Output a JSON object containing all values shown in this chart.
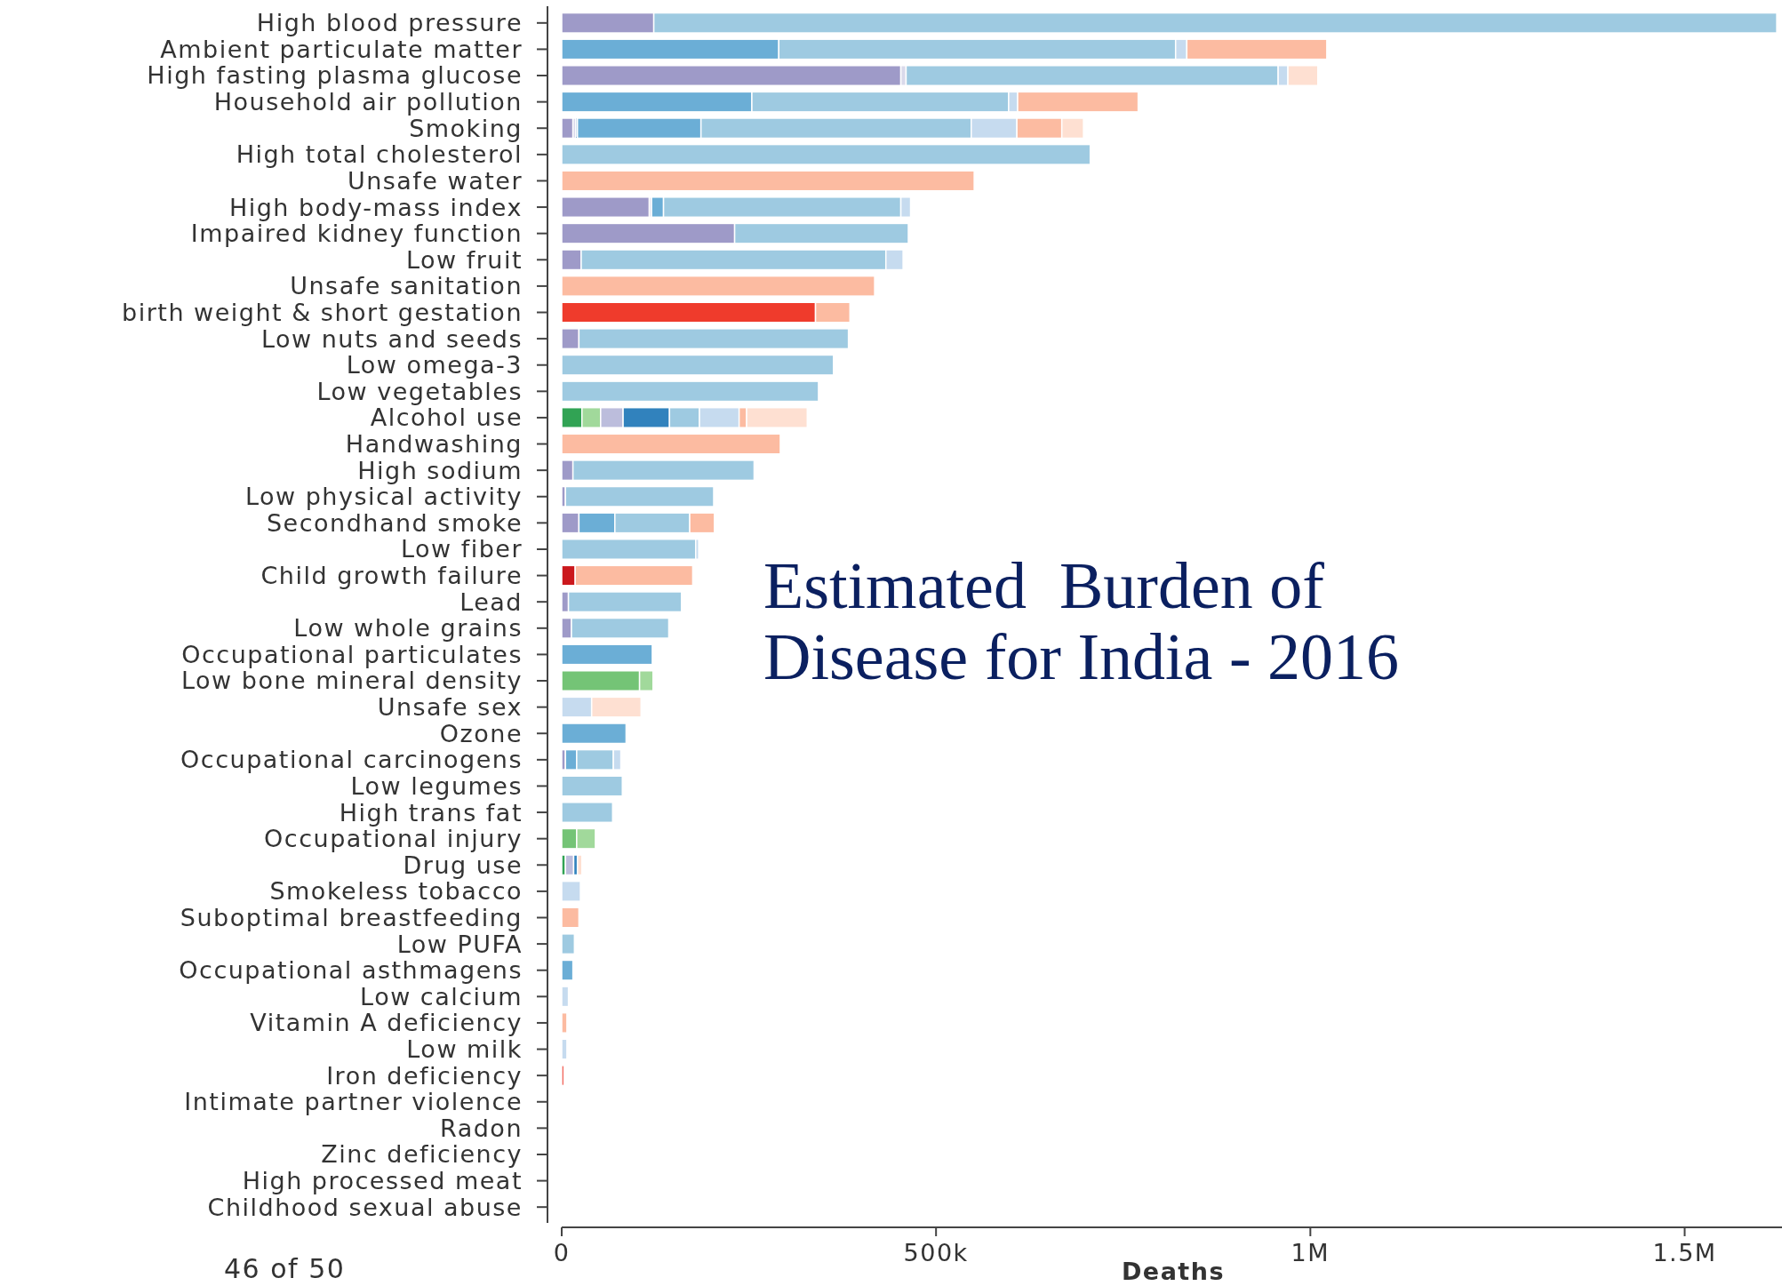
{
  "chart_data": {
    "type": "bar",
    "orientation": "horizontal",
    "stacked": true,
    "title": "Estimated  Burden of Disease for India - 2016",
    "xlabel": "Deaths",
    "annotations": [
      "46 of 50"
    ],
    "categories": [
      "High blood pressure",
      "Ambient particulate matter",
      "High fasting plasma glucose",
      "Household air pollution",
      "Smoking",
      "High total cholesterol",
      "Unsafe water",
      "High body-mass index",
      "Impaired kidney function",
      "Low fruit",
      "Unsafe sanitation",
      "birth weight & short gestation",
      "Low nuts and seeds",
      "Low omega-3",
      "Low vegetables",
      "Alcohol use",
      "Handwashing",
      "High sodium",
      "Low physical activity",
      "Secondhand smoke",
      "Low fiber",
      "Child growth failure",
      "Lead",
      "Low whole grains",
      "Occupational particulates",
      "Low bone mineral density",
      "Unsafe sex",
      "Ozone",
      "Occupational carcinogens",
      "Low legumes",
      "High trans fat",
      "Occupational injury",
      "Drug use",
      "Smokeless tobacco",
      "Suboptimal breastfeeding",
      "Low PUFA",
      "Occupational asthmagens",
      "Low calcium",
      "Vitamin A deficiency",
      "Low milk",
      "Iron deficiency",
      "Intimate partner violence",
      "Radon",
      "Zinc deficiency",
      "High processed meat",
      "Childhood sexual abuse"
    ],
    "xlim": [
      0,
      1630000
    ],
    "xticks": [
      0,
      {
        "value": 500000,
        "label": "500k"
      },
      {
        "value": 1000000,
        "label": "1M"
      },
      {
        "value": 1500000,
        "label": "1.5M"
      }
    ],
    "series": [
      {
        "color": "#31a354",
        "values": [
          null,
          null,
          null,
          null,
          null,
          null,
          null,
          null,
          null,
          null,
          null,
          null,
          null,
          null,
          null,
          27000,
          null,
          null,
          null,
          null,
          null,
          null,
          null,
          null,
          null,
          null,
          null,
          null,
          null,
          null,
          null,
          null,
          5000,
          null,
          null,
          null,
          null,
          null,
          null,
          null,
          null,
          null,
          null,
          null,
          null,
          null
        ]
      },
      {
        "color": "#74c476",
        "values": [
          null,
          null,
          null,
          null,
          null,
          null,
          null,
          null,
          null,
          null,
          null,
          null,
          null,
          null,
          null,
          null,
          null,
          null,
          null,
          null,
          null,
          null,
          null,
          null,
          null,
          104000,
          null,
          null,
          null,
          null,
          null,
          20000,
          null,
          null,
          null,
          null,
          null,
          null,
          null,
          null,
          null,
          null,
          null,
          null,
          null,
          null
        ]
      },
      {
        "color": "#a1d99b",
        "values": [
          null,
          null,
          null,
          null,
          null,
          null,
          null,
          null,
          null,
          null,
          null,
          null,
          null,
          null,
          null,
          25000,
          null,
          null,
          null,
          null,
          null,
          null,
          null,
          null,
          null,
          18000,
          null,
          null,
          null,
          null,
          null,
          25000,
          null,
          null,
          null,
          null,
          null,
          null,
          null,
          null,
          null,
          null,
          null,
          null,
          null,
          null
        ]
      },
      {
        "color": "#9e9ac8",
        "values": [
          123000,
          null,
          453000,
          null,
          15000,
          null,
          null,
          117000,
          231000,
          26000,
          null,
          null,
          23000,
          null,
          null,
          null,
          null,
          15000,
          5000,
          23000,
          null,
          null,
          9000,
          13000,
          null,
          null,
          null,
          null,
          5000,
          null,
          null,
          null,
          null,
          null,
          null,
          null,
          null,
          null,
          null,
          null,
          null,
          null,
          null,
          null,
          null,
          null
        ]
      },
      {
        "color": "#bcbddc",
        "values": [
          null,
          null,
          null,
          null,
          null,
          null,
          null,
          null,
          null,
          null,
          null,
          null,
          null,
          null,
          null,
          30000,
          null,
          null,
          null,
          null,
          null,
          null,
          null,
          null,
          null,
          null,
          null,
          null,
          null,
          null,
          null,
          null,
          11000,
          null,
          null,
          null,
          null,
          null,
          null,
          null,
          null,
          null,
          null,
          null,
          null,
          null
        ]
      },
      {
        "color": "#dadaeb",
        "values": [
          null,
          null,
          7000,
          null,
          4000,
          null,
          null,
          3000,
          null,
          null,
          null,
          null,
          null,
          null,
          null,
          null,
          null,
          null,
          null,
          null,
          null,
          null,
          null,
          null,
          null,
          null,
          null,
          null,
          null,
          null,
          null,
          null,
          null,
          null,
          null,
          null,
          null,
          null,
          null,
          null,
          null,
          null,
          null,
          null,
          null,
          null
        ]
      },
      {
        "color": "#3182bd",
        "values": [
          null,
          null,
          null,
          null,
          2000,
          null,
          null,
          null,
          null,
          null,
          null,
          null,
          null,
          null,
          null,
          62000,
          null,
          null,
          null,
          null,
          null,
          null,
          null,
          null,
          null,
          null,
          null,
          null,
          null,
          null,
          null,
          null,
          5000,
          null,
          null,
          null,
          null,
          null,
          null,
          null,
          null,
          null,
          null,
          null,
          null,
          null
        ]
      },
      {
        "color": "#6baed6",
        "values": [
          null,
          290000,
          null,
          254000,
          165000,
          null,
          null,
          16000,
          null,
          null,
          null,
          null,
          null,
          null,
          null,
          null,
          null,
          null,
          null,
          48000,
          null,
          null,
          null,
          null,
          121000,
          null,
          null,
          86000,
          15000,
          null,
          null,
          null,
          null,
          null,
          null,
          null,
          15000,
          null,
          null,
          null,
          null,
          null,
          null,
          null,
          null,
          null
        ]
      },
      {
        "color": "#9ecae1",
        "values": [
          1500000,
          530000,
          497000,
          343000,
          361000,
          706000,
          null,
          317000,
          232000,
          407000,
          null,
          null,
          360000,
          363000,
          343000,
          40000,
          null,
          242000,
          198000,
          100000,
          179000,
          null,
          151000,
          130000,
          null,
          null,
          null,
          null,
          49000,
          81000,
          68000,
          null,
          null,
          null,
          null,
          17000,
          null,
          null,
          null,
          null,
          null,
          null,
          null,
          null,
          null,
          null
        ]
      },
      {
        "color": "#c6dbef",
        "values": [
          null,
          15000,
          13000,
          12000,
          61000,
          null,
          null,
          13000,
          null,
          23000,
          null,
          null,
          null,
          null,
          null,
          53000,
          null,
          null,
          null,
          null,
          4000,
          null,
          null,
          null,
          null,
          null,
          40000,
          null,
          10000,
          null,
          null,
          null,
          null,
          25000,
          null,
          null,
          null,
          9000,
          null,
          7000,
          null,
          null,
          null,
          null,
          null,
          null
        ]
      },
      {
        "color": "#cb181d",
        "values": [
          null,
          null,
          null,
          null,
          null,
          null,
          null,
          null,
          null,
          null,
          null,
          null,
          null,
          null,
          null,
          null,
          null,
          null,
          null,
          null,
          null,
          18000,
          null,
          null,
          null,
          null,
          null,
          null,
          null,
          null,
          null,
          null,
          null,
          null,
          null,
          null,
          null,
          null,
          null,
          null,
          null,
          null,
          null,
          null,
          null,
          null
        ]
      },
      {
        "color": "#ef3b2c",
        "values": [
          null,
          null,
          null,
          null,
          null,
          null,
          null,
          null,
          null,
          null,
          null,
          339000,
          null,
          null,
          null,
          null,
          null,
          null,
          null,
          null,
          null,
          null,
          null,
          null,
          null,
          null,
          null,
          null,
          null,
          null,
          null,
          null,
          null,
          null,
          null,
          null,
          null,
          null,
          null,
          null,
          3000,
          null,
          null,
          null,
          null,
          null
        ]
      },
      {
        "color": "#fcbba1",
        "values": [
          null,
          187000,
          null,
          161000,
          60000,
          null,
          551000,
          null,
          null,
          null,
          418000,
          46000,
          null,
          null,
          null,
          10000,
          292000,
          null,
          null,
          33000,
          null,
          157000,
          null,
          null,
          null,
          null,
          null,
          null,
          null,
          null,
          null,
          null,
          null,
          null,
          23000,
          null,
          null,
          null,
          7000,
          null,
          null,
          null,
          null,
          null,
          null,
          null
        ]
      },
      {
        "color": "#fee0d2",
        "values": [
          null,
          null,
          40000,
          null,
          29000,
          null,
          null,
          null,
          null,
          null,
          null,
          null,
          null,
          null,
          null,
          81000,
          null,
          null,
          null,
          null,
          null,
          null,
          null,
          null,
          null,
          null,
          66000,
          null,
          null,
          null,
          null,
          null,
          6000,
          null,
          null,
          null,
          null,
          null,
          null,
          null,
          null,
          null,
          null,
          null,
          null,
          null
        ]
      }
    ]
  }
}
